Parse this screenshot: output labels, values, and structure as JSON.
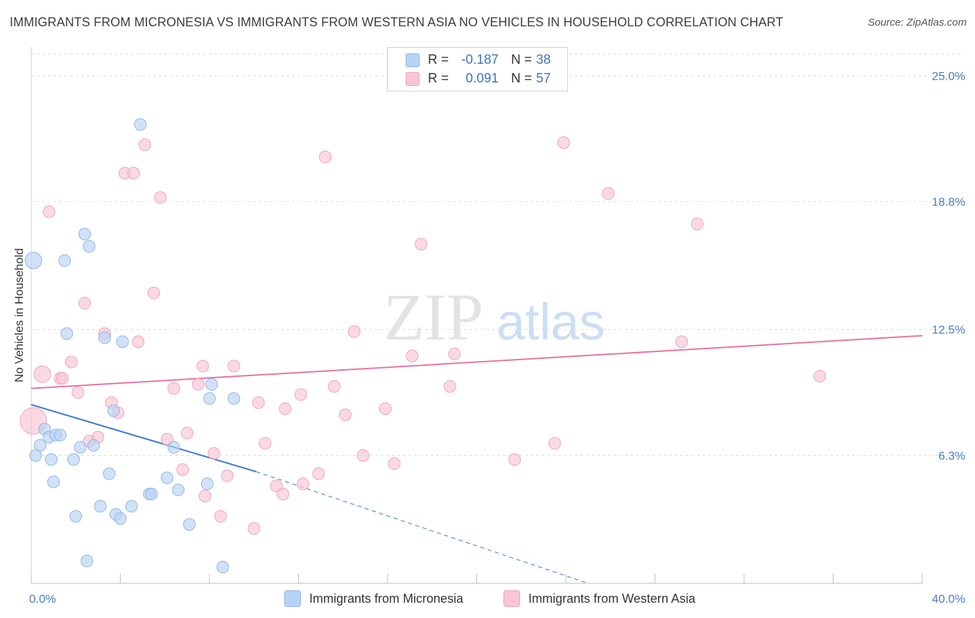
{
  "title": "IMMIGRANTS FROM MICRONESIA VS IMMIGRANTS FROM WESTERN ASIA NO VEHICLES IN HOUSEHOLD CORRELATION CHART",
  "source": "Source: ZipAtlas.com",
  "watermark": {
    "part1": "ZIP",
    "part2": "atlas"
  },
  "legend": {
    "row1": {
      "r_label": "R =",
      "r_value": "-0.187",
      "n_label": "N =",
      "n_value": "38"
    },
    "row2": {
      "r_label": "R =",
      "r_value": "0.091",
      "n_label": "N =",
      "n_value": "57"
    }
  },
  "colors": {
    "blue_fill": "#b8d3f5",
    "blue_stroke": "#8fb5e6",
    "blue_line": "#3575d4",
    "pink_fill": "#f9c5d4",
    "pink_stroke": "#eda3bb",
    "pink_line": "#e8739a",
    "tick_text": "#4a7cc4",
    "grid": "#dcdcdc"
  },
  "chart_data": {
    "type": "scatter",
    "title": "IMMIGRANTS FROM MICRONESIA VS IMMIGRANTS FROM WESTERN ASIA NO VEHICLES IN HOUSEHOLD CORRELATION CHART",
    "xlabel": "",
    "ylabel": "No Vehicles in Household",
    "xlim": [
      0,
      40
    ],
    "ylim": [
      0,
      26
    ],
    "x_tick_labels": [
      "0.0%",
      "40.0%"
    ],
    "y_ticks": [
      6.3,
      12.5,
      18.8,
      25.0
    ],
    "y_tick_labels": [
      "6.3%",
      "12.5%",
      "18.8%",
      "25.0%"
    ],
    "grid": true,
    "legend_position": "top-center",
    "series": [
      {
        "name": "Immigrants from Micronesia",
        "color": "#b8d3f5",
        "r": -0.187,
        "n": 38,
        "trend": {
          "x0": 0,
          "y0": 8.8,
          "x1": 10.1,
          "y1": 5.5,
          "dashed_to_x": 25.0,
          "dashed_to_y": 0.0
        },
        "points": [
          [
            0.1,
            15.9,
            2
          ],
          [
            0.2,
            6.3,
            1
          ],
          [
            0.4,
            6.8,
            1
          ],
          [
            0.6,
            7.6,
            1
          ],
          [
            0.8,
            7.2,
            1
          ],
          [
            0.9,
            6.1,
            1
          ],
          [
            1.0,
            5.0,
            1
          ],
          [
            1.1,
            7.3,
            1
          ],
          [
            1.3,
            7.3,
            1
          ],
          [
            1.5,
            15.9,
            1
          ],
          [
            1.6,
            12.3,
            1
          ],
          [
            1.9,
            6.1,
            1
          ],
          [
            2.0,
            3.3,
            1
          ],
          [
            2.2,
            6.7,
            1
          ],
          [
            2.4,
            17.2,
            1
          ],
          [
            2.5,
            1.1,
            1
          ],
          [
            2.6,
            16.6,
            1
          ],
          [
            2.8,
            6.8,
            1
          ],
          [
            3.1,
            3.8,
            1
          ],
          [
            3.3,
            12.1,
            1
          ],
          [
            3.5,
            5.4,
            1
          ],
          [
            3.7,
            8.5,
            1
          ],
          [
            3.8,
            3.4,
            1
          ],
          [
            4.0,
            3.2,
            1
          ],
          [
            4.1,
            11.9,
            1
          ],
          [
            4.5,
            3.8,
            1
          ],
          [
            4.9,
            22.6,
            1
          ],
          [
            5.3,
            4.4,
            1
          ],
          [
            5.4,
            4.4,
            1
          ],
          [
            6.1,
            5.2,
            1
          ],
          [
            6.4,
            6.7,
            1
          ],
          [
            6.6,
            4.6,
            1
          ],
          [
            7.1,
            2.9,
            1
          ],
          [
            7.9,
            4.9,
            1
          ],
          [
            8.0,
            9.1,
            1
          ],
          [
            8.1,
            9.8,
            1
          ],
          [
            8.6,
            0.8,
            1
          ],
          [
            9.1,
            9.1,
            1
          ]
        ]
      },
      {
        "name": "Immigrants from Western Asia",
        "color": "#f9c5d4",
        "r": 0.091,
        "n": 57,
        "trend": {
          "x0": 0,
          "y0": 9.6,
          "x1": 40,
          "y1": 12.2
        },
        "points": [
          [
            0.1,
            8.0,
            3
          ],
          [
            0.5,
            10.3,
            2
          ],
          [
            0.8,
            18.3,
            1
          ],
          [
            1.3,
            10.1,
            1
          ],
          [
            1.4,
            10.1,
            1
          ],
          [
            1.8,
            10.9,
            1
          ],
          [
            2.1,
            9.4,
            1
          ],
          [
            2.4,
            13.8,
            1
          ],
          [
            2.6,
            7.0,
            1
          ],
          [
            3.0,
            7.2,
            1
          ],
          [
            3.3,
            12.3,
            1
          ],
          [
            3.6,
            8.9,
            1
          ],
          [
            3.9,
            8.4,
            1
          ],
          [
            4.2,
            20.2,
            1
          ],
          [
            4.6,
            20.2,
            1
          ],
          [
            4.8,
            11.9,
            1
          ],
          [
            5.1,
            21.6,
            1
          ],
          [
            5.5,
            14.3,
            1
          ],
          [
            5.8,
            19.0,
            1
          ],
          [
            6.1,
            7.1,
            1
          ],
          [
            6.4,
            9.6,
            1
          ],
          [
            6.8,
            5.6,
            1
          ],
          [
            7.0,
            7.4,
            1
          ],
          [
            7.5,
            9.8,
            1
          ],
          [
            7.7,
            10.7,
            1
          ],
          [
            7.8,
            4.3,
            1
          ],
          [
            8.2,
            6.4,
            1
          ],
          [
            8.5,
            3.3,
            1
          ],
          [
            8.8,
            5.3,
            1
          ],
          [
            9.1,
            10.7,
            1
          ],
          [
            10.0,
            2.7,
            1
          ],
          [
            10.2,
            8.9,
            1
          ],
          [
            10.5,
            6.9,
            1
          ],
          [
            11.0,
            4.8,
            1
          ],
          [
            11.3,
            4.4,
            1
          ],
          [
            11.4,
            8.6,
            1
          ],
          [
            12.1,
            9.3,
            1
          ],
          [
            12.2,
            4.9,
            1
          ],
          [
            12.9,
            5.4,
            1
          ],
          [
            13.2,
            21.0,
            1
          ],
          [
            13.6,
            9.7,
            1
          ],
          [
            14.1,
            8.3,
            1
          ],
          [
            14.5,
            12.4,
            1
          ],
          [
            14.9,
            6.3,
            1
          ],
          [
            15.9,
            8.6,
            1
          ],
          [
            16.3,
            5.9,
            1
          ],
          [
            17.1,
            11.2,
            1
          ],
          [
            17.5,
            16.7,
            1
          ],
          [
            18.8,
            9.7,
            1
          ],
          [
            19.0,
            11.3,
            1
          ],
          [
            21.7,
            6.1,
            1
          ],
          [
            23.5,
            6.9,
            1
          ],
          [
            23.9,
            21.7,
            1
          ],
          [
            25.9,
            19.2,
            1
          ],
          [
            29.2,
            11.9,
            1
          ],
          [
            29.9,
            17.7,
            1
          ],
          [
            35.4,
            10.2,
            1
          ]
        ]
      }
    ]
  }
}
